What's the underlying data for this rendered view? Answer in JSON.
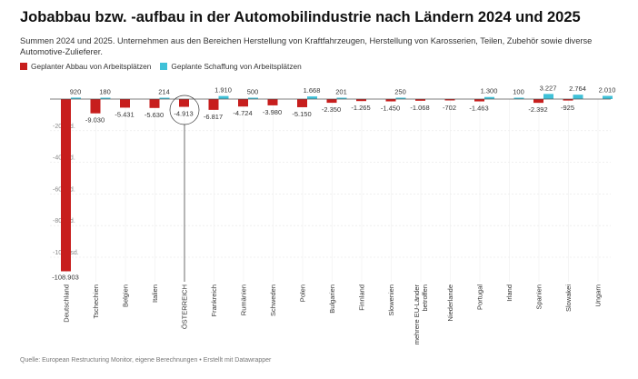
{
  "chart_data": {
    "type": "bar",
    "title": "Jobabbau bzw. -aufbau in der Automobilindustrie nach Ländern 2024 und 2025",
    "subtitle": "Summen 2024 und 2025. Unternehmen aus den Bereichen Herstellung von Kraftfahrzeugen, Herstellung von Karosserien, Teilen, Zubehör sowie diverse Automotive-Zulieferer.",
    "categories": [
      "Deutschland",
      "Tschechien",
      "Belgien",
      "Italien",
      "ÖSTERREICH",
      "Frankreich",
      "Rumänien",
      "Schweden",
      "Polen",
      "Bulgarien",
      "Finnland",
      "Slowenien",
      "mehrere EU-Länder betroffen",
      "Niederlande",
      "Portugal",
      "Irland",
      "Spanien",
      "Slowakei",
      "Ungarn"
    ],
    "series": [
      {
        "name": "Geplanter Abbau von Arbeitsplätzen",
        "color": "#c71e1d",
        "values": [
          -108903,
          -9030,
          -5431,
          -5630,
          -4913,
          -6817,
          -4724,
          -3980,
          -5150,
          -2350,
          -1265,
          -1450,
          -1068,
          -702,
          -1463,
          null,
          -2392,
          -925,
          null
        ],
        "labels": [
          "-108.903",
          "-9.030",
          "-5.431",
          "-5.630",
          "-4.913",
          "-6.817",
          "-4.724",
          "-3.980",
          "-5.150",
          "-2.350",
          "-1.265",
          "-1.450",
          "-1.068",
          "-702",
          "-1.463",
          "",
          "-2.392",
          "-925",
          ""
        ]
      },
      {
        "name": "Geplante Schaffung von Arbeitsplätzen",
        "color": "#3fc1d8",
        "values": [
          920,
          180,
          null,
          214,
          null,
          1910,
          500,
          null,
          1668,
          201,
          null,
          250,
          null,
          null,
          1300,
          100,
          3227,
          2764,
          2010
        ],
        "labels": [
          "920",
          "180",
          "",
          "214",
          "",
          "1.910",
          "500",
          "",
          "1.668",
          "201",
          "",
          "250",
          "",
          "",
          "1.300",
          "100",
          "3.227",
          "2.764",
          "2.010"
        ]
      }
    ],
    "yticks": [
      -20000,
      -40000,
      -60000,
      -80000,
      -100000
    ],
    "ytick_labels": [
      "-20 Tsd.",
      "-40 Tsd.",
      "-60 Tsd.",
      "-80 Tsd.",
      "-100 Tsd."
    ],
    "ylim": [
      -110000,
      4000
    ],
    "highlight": "ÖSTERREICH"
  },
  "footer": "Quelle: European Restructuring Monitor, eigene Berechnungen • Erstellt mit Datawrapper"
}
